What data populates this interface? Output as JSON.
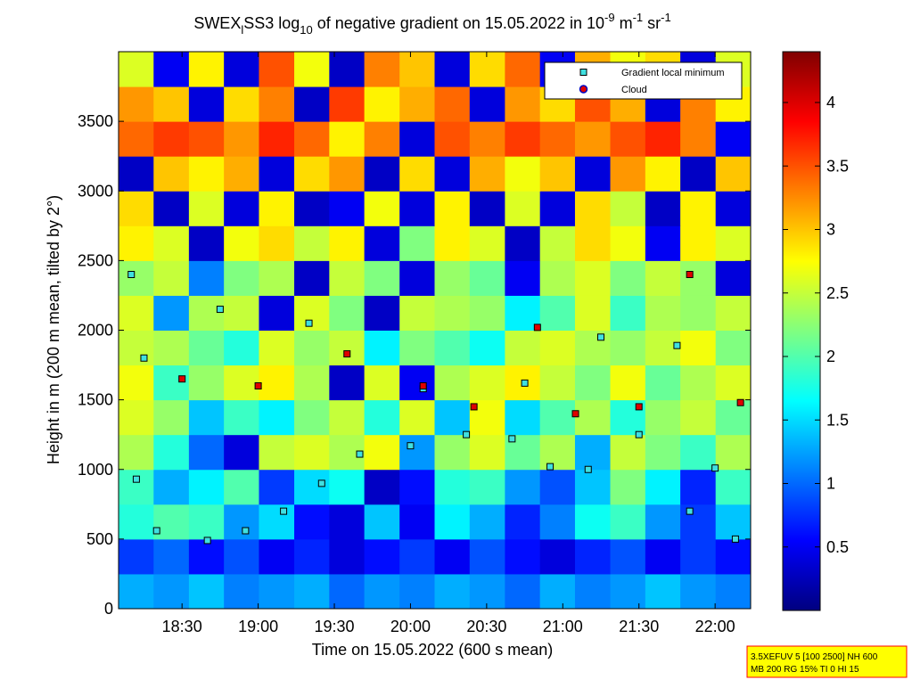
{
  "chart_data": {
    "type": "heatmap",
    "title": [
      "SWEX",
      "l",
      "SS3 log",
      "10",
      " of negative gradient on 15.05.2022 in 10",
      "-9",
      " m",
      "-1",
      " sr",
      "-1"
    ],
    "xlabel": "Time on 15.05.2022 (600 s mean)",
    "ylabel": "Height in m (200 m mean, tilted by 2°)",
    "colormap": "jet",
    "xlim": [
      1085,
      1334
    ],
    "ylim": [
      0,
      4000
    ],
    "clim": [
      0,
      4.4
    ],
    "xticks": [
      {
        "value": 1110,
        "label": "18:30"
      },
      {
        "value": 1140,
        "label": "19:00"
      },
      {
        "value": 1170,
        "label": "19:30"
      },
      {
        "value": 1200,
        "label": "20:00"
      },
      {
        "value": 1230,
        "label": "20:30"
      },
      {
        "value": 1260,
        "label": "21:00"
      },
      {
        "value": 1290,
        "label": "21:30"
      },
      {
        "value": 1320,
        "label": "22:00"
      }
    ],
    "yticks": [
      0,
      500,
      1000,
      1500,
      2000,
      2500,
      3000,
      3500
    ],
    "cticks": [
      0.5,
      1,
      1.5,
      2,
      2.5,
      3,
      3.5,
      4
    ],
    "xbins": [
      1085,
      1098.8,
      1112.7,
      1126.5,
      1140.3,
      1154.2,
      1168,
      1181.8,
      1195.7,
      1209.5,
      1223.3,
      1237.2,
      1251,
      1264.8,
      1278.7,
      1292.5,
      1306.3,
      1320.2,
      1334
    ],
    "ybins": [
      0,
      250,
      500,
      750,
      1000,
      1250,
      1500,
      1750,
      2000,
      2250,
      2500,
      2750,
      3000,
      3250,
      3500,
      3750,
      4000
    ],
    "z": [
      [
        1.3,
        1.2,
        1.4,
        1.1,
        1.2,
        1.3,
        1.0,
        1.2,
        1.1,
        1.3,
        1.2,
        1.0,
        1.3,
        1.1,
        1.2,
        1.4,
        1.2,
        1.1
      ],
      [
        0.8,
        1.0,
        0.6,
        0.9,
        0.5,
        0.7,
        0.4,
        0.6,
        0.8,
        0.5,
        0.9,
        0.6,
        0.4,
        0.7,
        0.9,
        0.5,
        0.8,
        0.6
      ],
      [
        1.8,
        2.0,
        1.9,
        1.2,
        1.5,
        0.6,
        0.4,
        1.4,
        0.5,
        1.6,
        1.3,
        0.7,
        1.1,
        1.7,
        1.9,
        1.2,
        0.8,
        1.4
      ],
      [
        1.9,
        1.3,
        1.6,
        2.0,
        0.8,
        1.5,
        1.7,
        0.3,
        0.6,
        1.8,
        1.9,
        1.2,
        0.9,
        1.4,
        2.2,
        1.6,
        0.7,
        1.9
      ],
      [
        2.4,
        1.8,
        1.0,
        0.4,
        2.5,
        2.6,
        2.4,
        2.7,
        1.2,
        2.3,
        2.6,
        2.1,
        2.4,
        1.3,
        2.5,
        2.2,
        1.9,
        2.4
      ],
      [
        2.6,
        2.3,
        1.4,
        1.9,
        1.6,
        2.2,
        2.5,
        1.8,
        2.6,
        1.4,
        2.7,
        1.5,
        2.0,
        2.4,
        1.8,
        2.3,
        2.5,
        2.1
      ],
      [
        2.7,
        1.9,
        2.3,
        2.6,
        2.8,
        2.4,
        0.3,
        2.6,
        0.5,
        2.4,
        2.6,
        2.8,
        2.5,
        2.2,
        2.7,
        2.1,
        2.4,
        2.6
      ],
      [
        2.5,
        2.4,
        2.1,
        1.8,
        2.6,
        2.3,
        2.5,
        1.6,
        2.2,
        2.0,
        1.7,
        2.5,
        2.6,
        2.4,
        2.3,
        2.5,
        2.7,
        2.2
      ],
      [
        2.6,
        1.2,
        2.4,
        2.5,
        0.4,
        2.6,
        2.2,
        0.3,
        2.5,
        2.4,
        2.3,
        1.6,
        2.0,
        2.6,
        1.9,
        2.4,
        2.3,
        2.5
      ],
      [
        2.3,
        2.5,
        1.1,
        2.2,
        2.4,
        0.3,
        2.5,
        2.2,
        0.4,
        2.3,
        2.1,
        0.5,
        2.4,
        2.6,
        2.2,
        2.5,
        2.3,
        0.4
      ],
      [
        2.8,
        2.6,
        0.3,
        2.7,
        2.9,
        2.5,
        2.8,
        0.4,
        2.2,
        2.8,
        2.6,
        0.3,
        2.5,
        2.9,
        2.7,
        0.5,
        2.8,
        2.6
      ],
      [
        2.9,
        0.3,
        2.6,
        0.4,
        2.8,
        0.3,
        0.5,
        2.7,
        0.4,
        2.8,
        0.3,
        2.6,
        0.4,
        2.9,
        2.5,
        0.3,
        2.8,
        0.4
      ],
      [
        0.3,
        3.0,
        2.8,
        3.1,
        0.4,
        2.9,
        3.2,
        0.3,
        2.9,
        0.4,
        3.1,
        2.7,
        3.0,
        0.4,
        3.2,
        2.8,
        0.3,
        3.0
      ],
      [
        3.4,
        3.6,
        3.5,
        3.2,
        3.7,
        3.4,
        2.8,
        3.3,
        0.4,
        3.5,
        3.3,
        3.6,
        3.4,
        3.2,
        3.5,
        3.7,
        3.3,
        0.5
      ],
      [
        3.2,
        3.0,
        0.4,
        2.9,
        3.3,
        0.3,
        3.6,
        2.8,
        3.1,
        3.4,
        0.4,
        3.2,
        2.9,
        3.5,
        3.1,
        0.4,
        3.3,
        2.8
      ],
      [
        2.6,
        0.5,
        2.8,
        0.4,
        3.5,
        2.7,
        0.3,
        3.3,
        3.0,
        0.4,
        2.9,
        3.4,
        0.5,
        3.1,
        2.7,
        2.9,
        0.4,
        2.6
      ]
    ],
    "series": [
      {
        "name": "Gradient local minimum",
        "color": "#40e0e0",
        "x": [
          1092,
          1100,
          1120,
          1135,
          1150,
          1165,
          1180,
          1200,
          1222,
          1240,
          1255,
          1270,
          1290,
          1310,
          1320,
          1328,
          1095,
          1125,
          1160,
          1205,
          1245,
          1275,
          1305,
          1090
        ],
        "values": [
          930,
          560,
          490,
          560,
          700,
          900,
          1110,
          1170,
          1250,
          1220,
          1020,
          1000,
          1250,
          700,
          1010,
          500,
          1800,
          2150,
          2050,
          1580,
          1620,
          1950,
          1890,
          2400
        ]
      },
      {
        "name": "Cloud",
        "color": "#e00000",
        "x": [
          1110,
          1140,
          1175,
          1205,
          1225,
          1250,
          1265,
          1290,
          1310,
          1330
        ],
        "values": [
          1650,
          1600,
          1830,
          1600,
          1450,
          2020,
          1400,
          1450,
          2400,
          1480
        ]
      }
    ],
    "legend": "upper right",
    "info": [
      "3.5XEFUV 5 [100 2500] NH 600",
      "MB 200 RG 15% TI 0 HI 15"
    ]
  }
}
